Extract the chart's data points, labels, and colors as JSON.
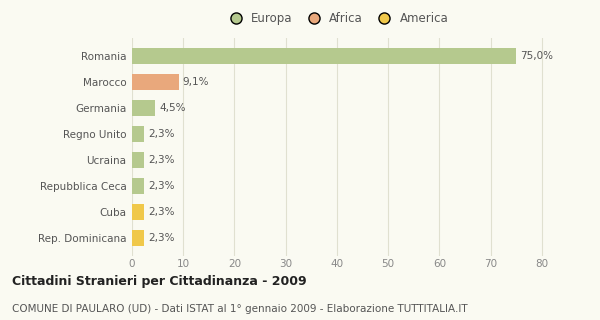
{
  "categories": [
    "Romania",
    "Marocco",
    "Germania",
    "Regno Unito",
    "Ucraina",
    "Repubblica Ceca",
    "Cuba",
    "Rep. Dominicana"
  ],
  "values": [
    75.0,
    9.1,
    4.5,
    2.3,
    2.3,
    2.3,
    2.3,
    2.3
  ],
  "labels": [
    "75,0%",
    "9,1%",
    "4,5%",
    "2,3%",
    "2,3%",
    "2,3%",
    "2,3%",
    "2,3%"
  ],
  "colors": [
    "#b5c98e",
    "#e9a87c",
    "#b5c98e",
    "#b5c98e",
    "#b5c98e",
    "#b5c98e",
    "#f0c84a",
    "#f0c84a"
  ],
  "legend": [
    {
      "label": "Europa",
      "color": "#b5c98e"
    },
    {
      "label": "Africa",
      "color": "#e9a87c"
    },
    {
      "label": "America",
      "color": "#f0c84a"
    }
  ],
  "xlim": [
    0,
    82
  ],
  "xticks": [
    0,
    10,
    20,
    30,
    40,
    50,
    60,
    70,
    80
  ],
  "title": "Cittadini Stranieri per Cittadinanza - 2009",
  "subtitle": "COMUNE DI PAULARO (UD) - Dati ISTAT al 1° gennaio 2009 - Elaborazione TUTTITALIA.IT",
  "background_color": "#fafaf2",
  "grid_color": "#e0e0d0",
  "bar_height": 0.6,
  "title_fontsize": 9,
  "subtitle_fontsize": 7.5,
  "label_fontsize": 7.5,
  "tick_fontsize": 7.5,
  "legend_fontsize": 8.5,
  "text_color": "#555555",
  "title_color": "#222222"
}
